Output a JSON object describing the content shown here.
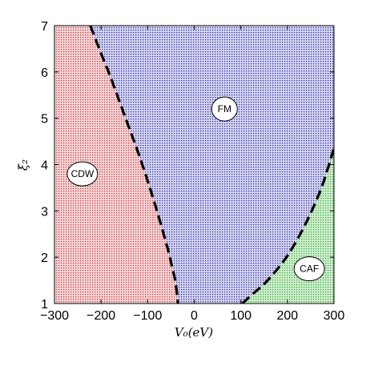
{
  "chart_data": {
    "type": "area",
    "title": "",
    "xlabel": "V₀(eV)",
    "ylabel": "ξ₂",
    "xlim": [
      -300,
      300
    ],
    "ylim": [
      1,
      7
    ],
    "xticks": [
      -300,
      -200,
      -100,
      0,
      100,
      200,
      300
    ],
    "yticks": [
      1,
      2,
      3,
      4,
      5,
      6,
      7
    ],
    "xtick_labels": [
      "−300",
      "−200",
      "−100",
      "0",
      "100",
      "200",
      "300"
    ],
    "ytick_labels": [
      "1",
      "2",
      "3",
      "4",
      "5",
      "6",
      "7"
    ],
    "grid": false,
    "legend": "none",
    "regions": [
      {
        "name": "CDW",
        "color": "#e8555b",
        "label_at": [
          -240,
          3.8
        ]
      },
      {
        "name": "FM",
        "color": "#4444c0",
        "label_at": [
          65,
          5.2
        ]
      },
      {
        "name": "CAF",
        "color": "#3cc23c",
        "label_at": [
          247,
          1.75
        ]
      }
    ],
    "boundaries": [
      {
        "name": "CDW-FM boundary",
        "style": "dashed",
        "x": [
          -223,
          -200,
          -180,
          -160,
          -140,
          -120,
          -100,
          -80,
          -60,
          -50,
          -40,
          -35
        ],
        "y": [
          7.0,
          6.4,
          5.9,
          5.35,
          4.8,
          4.25,
          3.65,
          3.0,
          2.3,
          1.9,
          1.45,
          1.0
        ]
      },
      {
        "name": "FM-CAF boundary",
        "style": "dashed",
        "x": [
          103,
          125,
          150,
          175,
          200,
          225,
          250,
          275,
          300
        ],
        "y": [
          1.0,
          1.2,
          1.42,
          1.7,
          2.03,
          2.45,
          2.95,
          3.55,
          4.35
        ]
      }
    ]
  }
}
